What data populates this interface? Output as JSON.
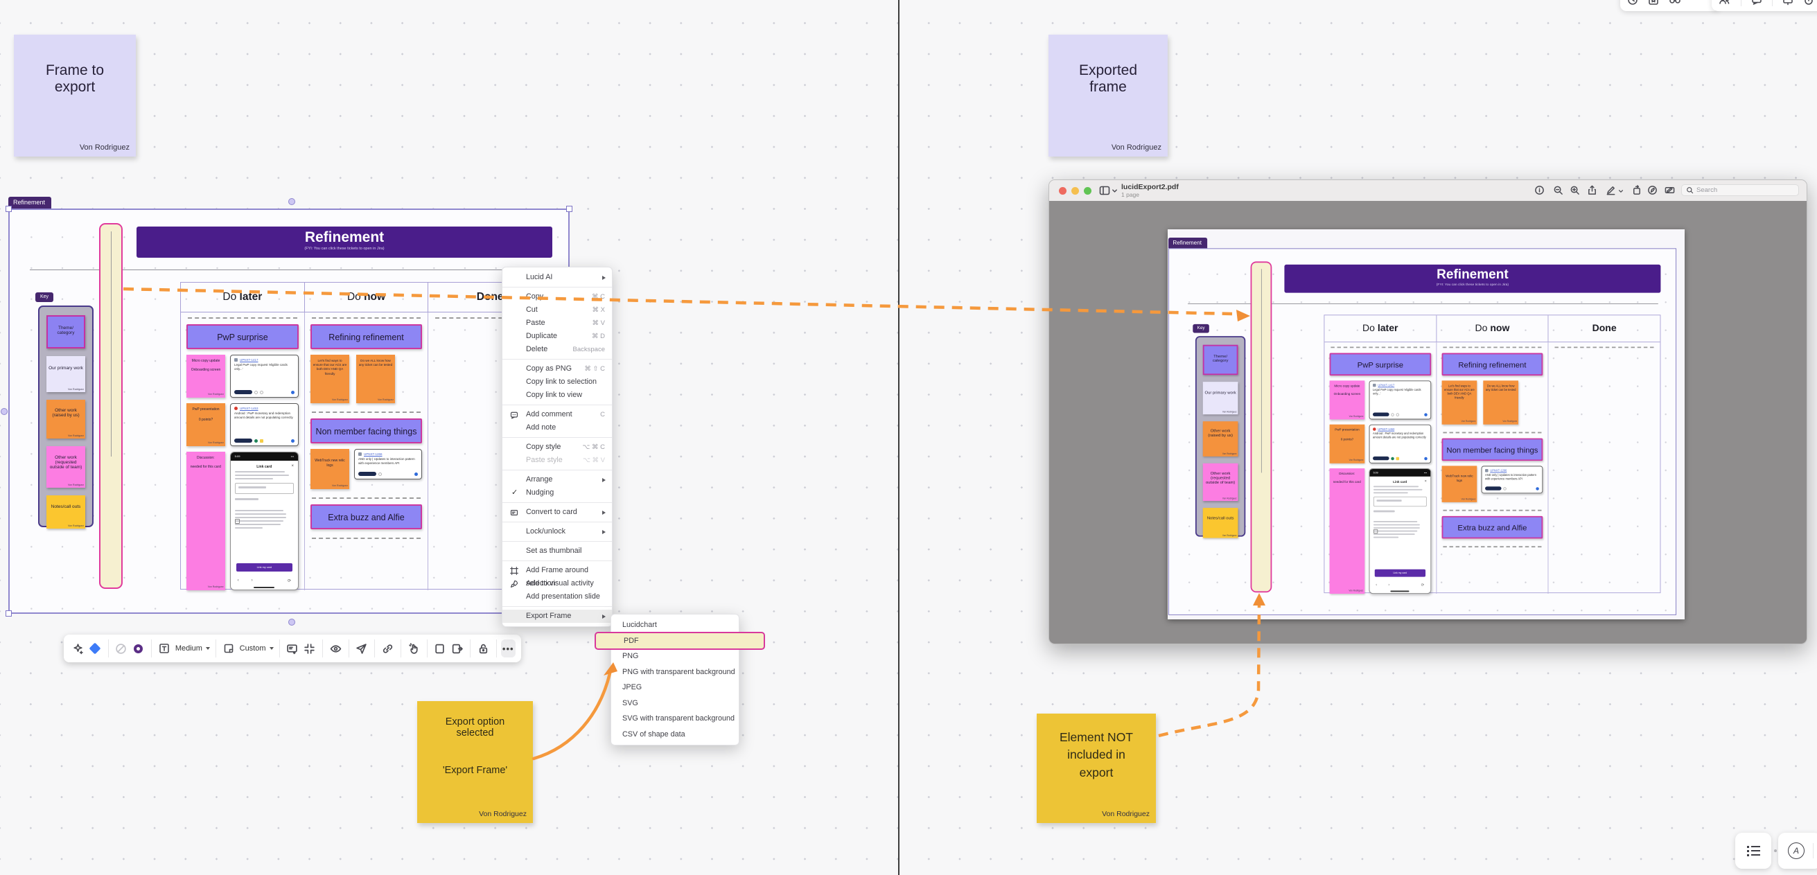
{
  "stickies": {
    "frame_to_export": {
      "text": "Frame to export",
      "author": "Von Rodriguez"
    },
    "exported_frame": {
      "text": "Exported frame",
      "author": "Von Rodriguez"
    },
    "export_option": {
      "line1": "Export option selected",
      "line2": "'Export Frame'",
      "author": "Von Rodriguez"
    },
    "not_included": {
      "text": "Element NOT included in export",
      "author": "Von Rodriguez"
    }
  },
  "board": {
    "frame_tag": "Refinement",
    "banner_title": "Refinement",
    "banner_subtitle": "(FYI: You can click these tickets to open in Jira)",
    "key_tag": "Key",
    "key_items": [
      {
        "label": "Theme/ category"
      },
      {
        "label": "Our primary work",
        "author": "Von Rodriguez"
      },
      {
        "label": "Other work (raised by us)",
        "author": "Von Rodriguez"
      },
      {
        "label": "Other work (requested outside of team)",
        "author": "Von Rodriguez"
      },
      {
        "label": "Notes/call outs",
        "author": "Von Rodriguez"
      }
    ],
    "columns": [
      {
        "plain": "Do ",
        "bold": "later"
      },
      {
        "plain": "Do ",
        "bold": "now"
      },
      {
        "plain": "",
        "bold": "Done"
      }
    ],
    "do_later": {
      "section": "PwP surprise",
      "sticky1": {
        "line1": "Micro copy update",
        "line2": "Onboarding screen",
        "author": "Von Rodriguez"
      },
      "card1": {
        "ticket": "UPNXT-1417",
        "text": "Legal PwP copy request 'eligible cards only...'"
      },
      "sticky2": {
        "line1": "PwP presentation",
        "line2": "0 points?",
        "author": "Von Rodriguez"
      },
      "card2": {
        "ticket": "UPNXT-1453",
        "text": "Android : PwP monetary and redemption amount details are not populating correctly"
      },
      "sticky3": {
        "line1": "Discussion:",
        "line2": "needed for this card",
        "author": "Von Rodriguez"
      },
      "phone": {
        "time": "5:09",
        "dots": "•••",
        "title": "Link card",
        "close": "×",
        "button": "Link my card",
        "back": "‹",
        "fwd": "›",
        "reload": "⟳"
      }
    },
    "do_now": {
      "section1": "Refining refinement",
      "sticky1": {
        "text": "Let's find ways to ensure that our ACs are both DEV AND QA friendly",
        "author": "Von Rodriguez"
      },
      "sticky2": {
        "text": "Do we ALL know how any ticket can be tested",
        "author": "Von Rodriguez"
      },
      "section2": "Non member facing things",
      "sticky3": {
        "text": "WebTrack new relic logs",
        "author": "Von Rodriguez"
      },
      "card": {
        "ticket": "UPNXT-1266",
        "text": "AND only | Updates to interaction pattern with experience members API"
      },
      "section3": "Extra buzz and Alfie"
    }
  },
  "context_menu": {
    "items": [
      {
        "label": "Lucid AI"
      },
      {
        "label": "Copy",
        "shortcut": "⌘ C"
      },
      {
        "label": "Cut",
        "shortcut": "⌘ X"
      },
      {
        "label": "Paste",
        "shortcut": "⌘ V"
      },
      {
        "label": "Duplicate",
        "shortcut": "⌘ D"
      },
      {
        "label": "Delete",
        "shortcut": "Backspace"
      },
      {
        "label": "Copy as PNG",
        "shortcut": "⌘ ⇧ C"
      },
      {
        "label": "Copy link to selection"
      },
      {
        "label": "Copy link to view"
      },
      {
        "label": "Add comment",
        "shortcut": "C"
      },
      {
        "label": "Add note"
      },
      {
        "label": "Copy style",
        "shortcut": "⌥ ⌘ C"
      },
      {
        "label": "Paste style",
        "shortcut": "⌥ ⌘ V"
      },
      {
        "label": "Arrange"
      },
      {
        "label": "Nudging",
        "check": "✓"
      },
      {
        "label": "Convert to card"
      },
      {
        "label": "Lock/unlock"
      },
      {
        "label": "Set as thumbnail"
      },
      {
        "label": "Add Frame around selection"
      },
      {
        "label": "Add to visual activity"
      },
      {
        "label": "Add presentation slide"
      },
      {
        "label": "Export Frame"
      }
    ]
  },
  "export_submenu": {
    "items": [
      {
        "label": "Lucidchart"
      },
      {
        "label": "PDF"
      },
      {
        "label": "PNG"
      },
      {
        "label": "PNG with transparent background"
      },
      {
        "label": "JPEG"
      },
      {
        "label": "SVG"
      },
      {
        "label": "SVG with transparent background"
      },
      {
        "label": "CSV of shape data"
      }
    ],
    "selected": "PDF"
  },
  "selection_toolbar": {
    "text_style": "Medium",
    "frame_size": "Custom",
    "more": "•••"
  },
  "pdf_window": {
    "title": "lucidExport2.pdf",
    "page_count": "1 page",
    "search_placeholder": "Search"
  },
  "colors": {
    "accent_orange": "#f5993d",
    "frame_purple": "#4a1d8a",
    "tag_purple": "#46276f",
    "sticky_pink_border": "#cc37a0",
    "strip_border": "#e03a9c",
    "annotation_yellow": "#edc436",
    "annotation_lavender": "#dcd9f7"
  }
}
